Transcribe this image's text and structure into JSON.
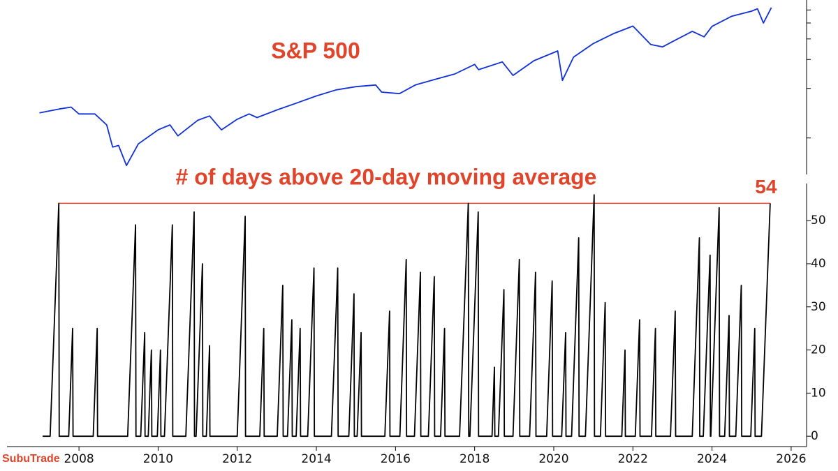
{
  "chart_data": [
    {
      "type": "line",
      "title": "S&P 500",
      "color": "#1030d8",
      "log_scale": true,
      "xlim": [
        2006.18,
        2026.39
      ],
      "ylim": [
        600,
        6900
      ],
      "ytick_marks": [
        1000,
        2000,
        3000,
        4000,
        5000,
        6000
      ],
      "x": [
        2007.0,
        2007.5,
        2007.8,
        2008.0,
        2008.4,
        2008.7,
        2008.85,
        2009.0,
        2009.2,
        2009.5,
        2010.0,
        2010.3,
        2010.5,
        2011.0,
        2011.3,
        2011.6,
        2012.0,
        2012.3,
        2012.5,
        2013.0,
        2013.5,
        2014.0,
        2014.5,
        2015.0,
        2015.5,
        2015.65,
        2016.1,
        2016.5,
        2017.0,
        2017.5,
        2018.0,
        2018.1,
        2018.7,
        2018.97,
        2019.5,
        2020.1,
        2020.22,
        2020.5,
        2021.0,
        2021.5,
        2022.0,
        2022.45,
        2022.75,
        2023.0,
        2023.5,
        2023.8,
        2024.0,
        2024.5,
        2025.0,
        2025.15,
        2025.3,
        2025.5
      ],
      "values": [
        1420,
        1500,
        1540,
        1400,
        1400,
        1200,
        880,
        900,
        680,
        920,
        1120,
        1200,
        1030,
        1280,
        1360,
        1120,
        1300,
        1400,
        1330,
        1480,
        1630,
        1800,
        1960,
        2050,
        2100,
        1900,
        1860,
        2100,
        2270,
        2450,
        2800,
        2600,
        2900,
        2400,
        2950,
        3380,
        2240,
        3100,
        3750,
        4300,
        4790,
        3700,
        3580,
        3850,
        4450,
        4120,
        4770,
        5500,
        5900,
        6100,
        5000,
        6200
      ]
    },
    {
      "type": "line",
      "title": "# of days above 20-day moving average",
      "color": "#000000",
      "xlim": [
        2006.18,
        2026.39
      ],
      "xticks": [
        2008,
        2010,
        2012,
        2014,
        2016,
        2018,
        2020,
        2022,
        2024,
        2026
      ],
      "ylim": [
        -2.4,
        58.6
      ],
      "yticks": [
        0,
        10,
        20,
        30,
        40,
        50
      ],
      "hline": {
        "value": 54,
        "label": "54",
        "color": "#e0452b",
        "from": 2007.49,
        "to": 2025.47
      },
      "x": [
        2007.08,
        2007.27,
        2007.49,
        2007.5,
        2007.74,
        2007.84,
        2007.85,
        2008.36,
        2008.46,
        2008.47,
        2009.23,
        2009.43,
        2009.44,
        2009.56,
        2009.66,
        2009.67,
        2009.75,
        2009.83,
        2009.84,
        2009.98,
        2010.06,
        2010.07,
        2010.16,
        2010.36,
        2010.37,
        2010.7,
        2010.91,
        2010.92,
        2010.96,
        2011.12,
        2011.13,
        2011.22,
        2011.3,
        2011.31,
        2012.0,
        2012.2,
        2012.21,
        2012.57,
        2012.67,
        2012.68,
        2013.01,
        2013.15,
        2013.16,
        2013.27,
        2013.38,
        2013.39,
        2013.49,
        2013.59,
        2013.6,
        2013.78,
        2013.94,
        2013.95,
        2014.38,
        2014.54,
        2014.55,
        2014.82,
        2014.95,
        2014.96,
        2015.03,
        2015.13,
        2015.14,
        2015.73,
        2015.85,
        2015.86,
        2016.11,
        2016.27,
        2016.28,
        2016.48,
        2016.63,
        2016.64,
        2016.83,
        2016.98,
        2016.99,
        2017.14,
        2017.24,
        2017.25,
        2017.62,
        2017.84,
        2017.85,
        2017.88,
        2018.09,
        2018.1,
        2018.44,
        2018.5,
        2018.51,
        2018.6,
        2018.74,
        2018.75,
        2018.97,
        2019.13,
        2019.14,
        2019.39,
        2019.54,
        2019.55,
        2019.82,
        2019.96,
        2019.97,
        2020.2,
        2020.3,
        2020.31,
        2020.45,
        2020.63,
        2020.64,
        2020.8,
        2021.02,
        2021.03,
        2021.18,
        2021.3,
        2021.31,
        2021.72,
        2021.8,
        2021.81,
        2022.06,
        2022.17,
        2022.18,
        2022.47,
        2022.57,
        2022.58,
        2022.95,
        2023.07,
        2023.08,
        2023.5,
        2023.68,
        2023.69,
        2023.78,
        2023.95,
        2023.96,
        2023.97,
        2024.18,
        2024.19,
        2024.32,
        2024.43,
        2024.44,
        2024.6,
        2024.74,
        2024.75,
        2024.98,
        2025.08,
        2025.09,
        2025.25,
        2025.47
      ],
      "values": [
        0,
        0,
        54,
        0,
        0,
        25,
        0,
        0,
        25,
        0,
        0,
        49,
        0,
        0,
        24,
        0,
        0,
        20,
        0,
        0,
        20,
        0,
        0,
        49,
        0,
        0,
        52,
        0,
        0,
        40,
        0,
        0,
        21,
        0,
        0,
        51,
        0,
        0,
        25,
        0,
        0,
        35,
        0,
        0,
        27,
        0,
        0,
        25,
        0,
        0,
        39,
        0,
        0,
        39,
        0,
        0,
        33,
        0,
        0,
        24,
        0,
        0,
        29,
        0,
        0,
        41,
        0,
        0,
        38,
        0,
        0,
        37,
        0,
        0,
        25,
        0,
        0,
        54,
        0,
        0,
        52,
        0,
        0,
        16,
        0,
        0,
        34,
        0,
        0,
        41,
        0,
        0,
        38,
        0,
        0,
        36,
        0,
        0,
        24,
        0,
        0,
        46,
        0,
        0,
        56,
        0,
        0,
        31,
        0,
        0,
        20,
        0,
        0,
        27,
        0,
        0,
        25,
        0,
        0,
        29,
        0,
        0,
        46,
        0,
        0,
        42,
        0,
        0,
        53,
        0,
        0,
        28,
        0,
        0,
        35,
        0,
        0,
        25,
        0,
        0,
        54
      ]
    }
  ],
  "watermark": "SubuTrade"
}
